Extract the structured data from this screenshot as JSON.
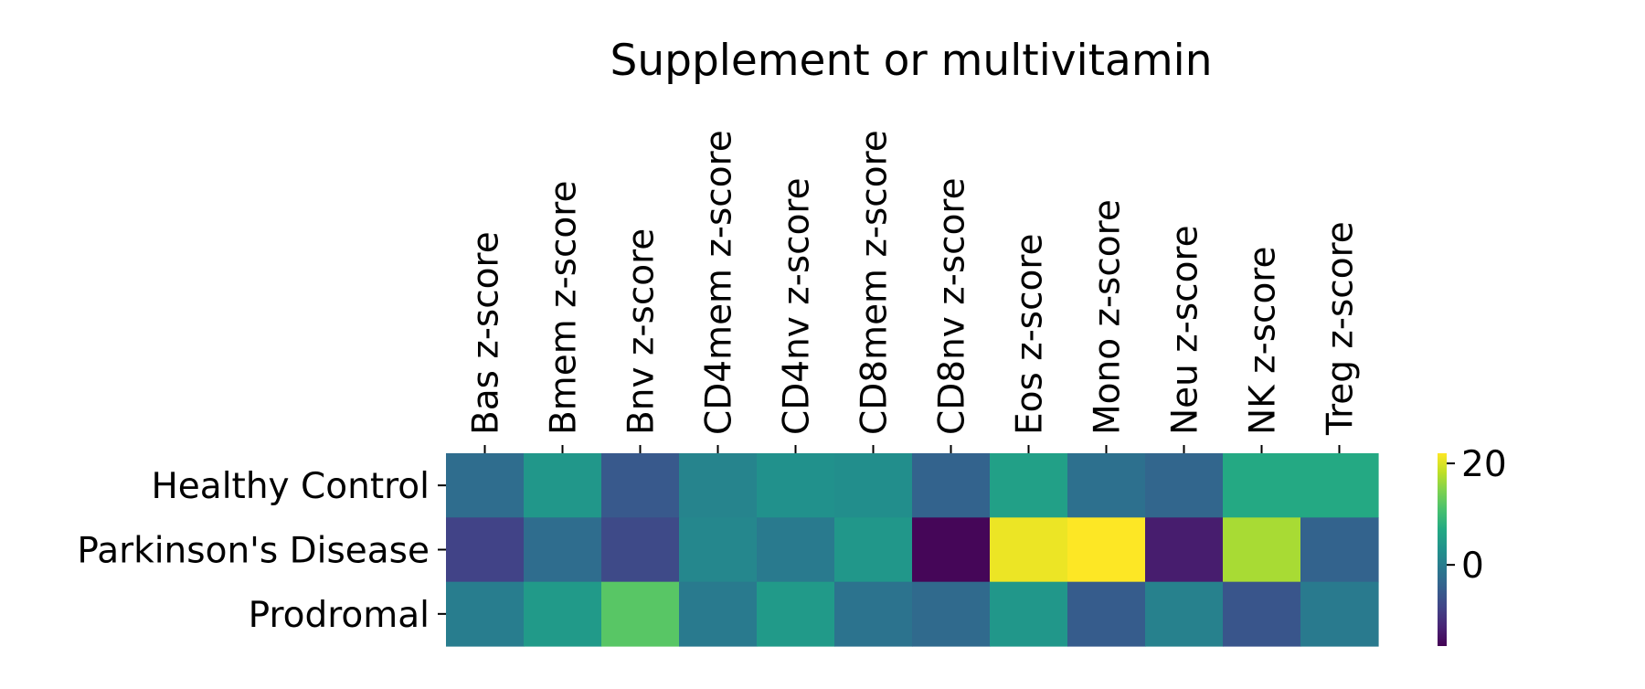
{
  "chart_data": {
    "type": "heatmap",
    "title": "Supplement or multivitamin",
    "columns": [
      "Bas z-score",
      "Bmem z-score",
      "Bnv z-score",
      "CD4mem z-score",
      "CD4nv z-score",
      "CD8mem z-score",
      "CD8nv z-score",
      "Eos z-score",
      "Mono z-score",
      "Neu z-score",
      "NK z-score",
      "Treg z-score"
    ],
    "rows": [
      "Healthy Control",
      "Parkinson's Disease",
      "Prodromal"
    ],
    "values": [
      [
        -2.5,
        4.0,
        -5.5,
        1.0,
        3.0,
        2.5,
        -4.0,
        5.5,
        -2.0,
        -3.5,
        7.0,
        7.0
      ],
      [
        -8.5,
        -2.5,
        -7.5,
        1.5,
        -0.5,
        4.0,
        -15.5,
        21.0,
        22.0,
        -13.0,
        17.0,
        -4.0
      ],
      [
        0.0,
        4.5,
        12.0,
        -0.5,
        4.5,
        -1.5,
        -3.0,
        4.0,
        -5.0,
        0.5,
        -6.0,
        -0.5
      ]
    ],
    "colormap": "viridis",
    "vmin": -16,
    "vmax": 22,
    "colorbar_ticks": [
      0,
      20
    ],
    "colorbar_tick_labels": [
      "0",
      "20"
    ],
    "xaxis_position": "top",
    "legend_position": "right"
  }
}
